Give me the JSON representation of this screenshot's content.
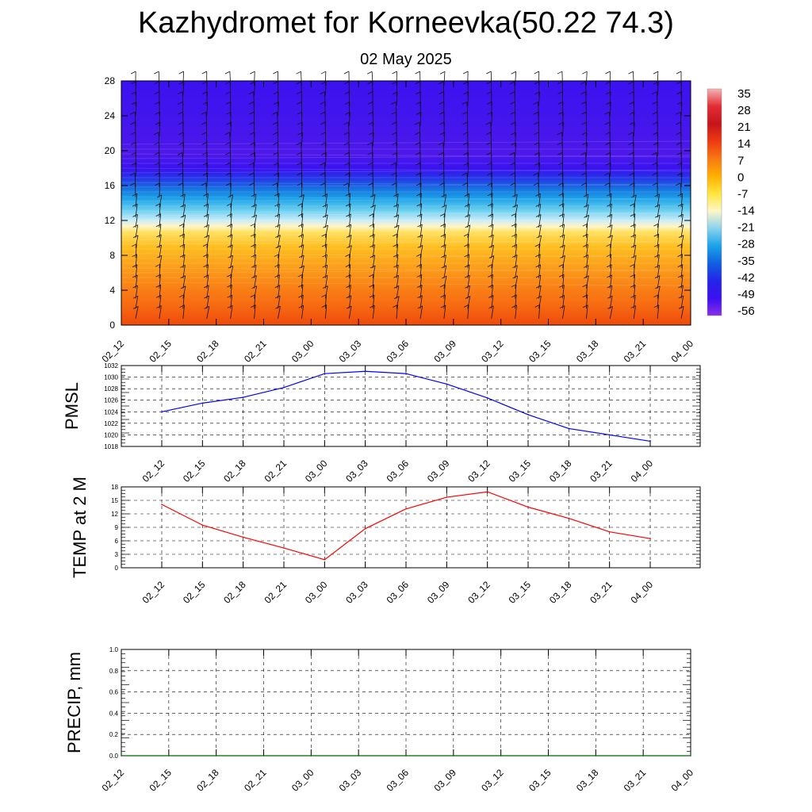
{
  "title": "Kazhydromet for Korneevka(50.22 74.3)",
  "subtitle": "02 May 2025",
  "chart_data": [
    {
      "type": "heatmap",
      "title": "",
      "xlabel": "",
      "ylabel": "",
      "x_ticks": [
        "02_12",
        "02_15",
        "02_18",
        "02_21",
        "03_00",
        "03_03",
        "03_06",
        "03_09",
        "03_12",
        "03_15",
        "03_18",
        "03_21",
        "04_00"
      ],
      "y_ticks": [
        0,
        4,
        8,
        12,
        16,
        20,
        24,
        28
      ],
      "ylim": [
        0,
        28
      ],
      "colorbar": {
        "labels": [
          "35",
          "28",
          "21",
          "14",
          "7",
          "0",
          "-7",
          "-14",
          "-21",
          "-28",
          "-35",
          "-42",
          "-49",
          "-56"
        ],
        "colors_top_to_bottom": [
          "#f5b3b3",
          "#e22c36",
          "#c6141c",
          "#ee3a0f",
          "#f77912",
          "#ffb000",
          "#ffe53b",
          "#fff6c8",
          "#8ad2ef",
          "#1aa4e8",
          "#1060e0",
          "#2424e8",
          "#3a10f0",
          "#8a2ee8"
        ]
      },
      "wind_barbs": "on",
      "grid": "off"
    },
    {
      "type": "line",
      "ylabel": "PMSL",
      "categories": [
        "02_12",
        "02_15",
        "02_18",
        "02_21",
        "03_00",
        "03_03",
        "03_06",
        "03_09",
        "03_12",
        "03_15",
        "03_18",
        "03_21",
        "04_00"
      ],
      "series": [
        {
          "values": [
            1024.0,
            1025.5,
            1026.5,
            1028.2,
            1030.6,
            1031.0,
            1030.6,
            1028.8,
            1026.4,
            1023.5,
            1021.1,
            1020.0,
            1018.9
          ],
          "color": "#0000ff"
        }
      ],
      "ylim": [
        1018,
        1032
      ],
      "y_ticks": [
        "1018",
        "1020",
        "1022",
        "1024",
        "1026",
        "1028",
        "1030",
        "1032"
      ],
      "grid": "on"
    },
    {
      "type": "line",
      "ylabel": "TEMP at 2 M",
      "categories": [
        "02_12",
        "02_15",
        "02_18",
        "02_21",
        "03_00",
        "03_03",
        "03_06",
        "03_09",
        "03_12",
        "03_15",
        "03_18",
        "03_21",
        "04_00"
      ],
      "series": [
        {
          "values": [
            14.1,
            9.5,
            6.8,
            4.4,
            1.8,
            8.7,
            13.1,
            15.7,
            16.9,
            13.5,
            11.0,
            8.0,
            6.5
          ],
          "color": "#ff0000"
        }
      ],
      "ylim": [
        0,
        18
      ],
      "y_ticks": [
        "0",
        "3",
        "6",
        "9",
        "12",
        "15",
        "18"
      ],
      "grid": "on"
    },
    {
      "type": "line",
      "ylabel": "PRECIP, mm",
      "categories": [
        "02_12",
        "02_15",
        "02_18",
        "02_21",
        "03_00",
        "03_03",
        "03_06",
        "03_09",
        "03_12",
        "03_15",
        "03_18",
        "03_21",
        "04_00"
      ],
      "series": [
        {
          "values": [
            0,
            0,
            0,
            0,
            0,
            0,
            0,
            0,
            0,
            0,
            0,
            0,
            0
          ],
          "color": "#006400"
        }
      ],
      "ylim": [
        0,
        1
      ],
      "y_ticks": [
        "0.0",
        "0.2",
        "0.4",
        "0.6",
        "0.8",
        "1.0"
      ],
      "grid": "on"
    }
  ]
}
